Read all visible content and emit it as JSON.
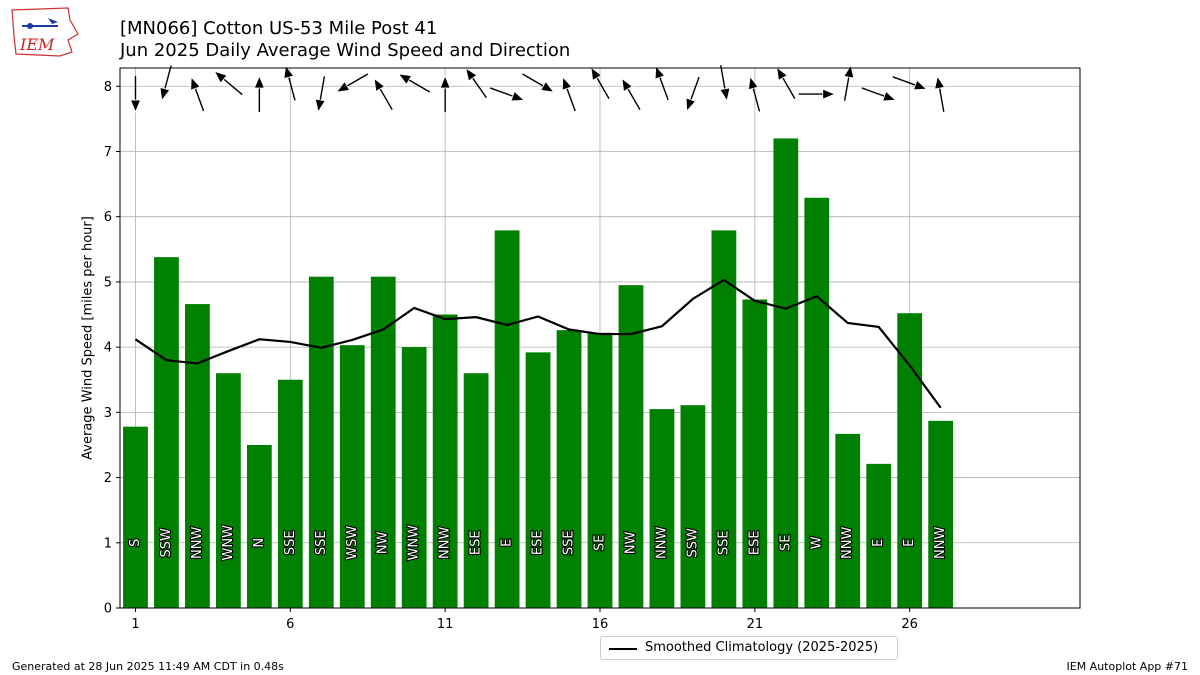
{
  "title_line1": "[MN066] Cotton US-53 Mile Post 41",
  "title_line2": "Jun 2025 Daily Average Wind Speed and Direction",
  "logo_text": "IEM",
  "footer_left": "Generated at 28 Jun 2025 11:49 AM CDT in 0.48s",
  "footer_right": "IEM Autoplot App #71",
  "legend_label": "Smoothed Climatology (2025-2025)",
  "colors": {
    "bar": "#008000",
    "climo": "#000000",
    "grid": "#b0b0b0"
  },
  "chart_data": {
    "type": "bar",
    "ylabel": "Average Wind Speed [miles per hour]",
    "xlabel": "",
    "xlim": [
      0.5,
      31.5
    ],
    "ylim": [
      0,
      8.28
    ],
    "x_ticks": [
      1,
      6,
      11,
      16,
      21,
      26
    ],
    "y_ticks": [
      0,
      1,
      2,
      3,
      4,
      5,
      6,
      7,
      8
    ],
    "grid": true,
    "legend_position": "bottom-center",
    "days": [
      1,
      2,
      3,
      4,
      5,
      6,
      7,
      8,
      9,
      10,
      11,
      12,
      13,
      14,
      15,
      16,
      17,
      18,
      19,
      20,
      21,
      22,
      23,
      24,
      25,
      26,
      27
    ],
    "series": [
      {
        "type": "bar",
        "values": [
          2.78,
          5.38,
          4.66,
          3.6,
          2.5,
          3.5,
          5.08,
          4.03,
          5.08,
          4.0,
          4.5,
          3.6,
          5.79,
          3.92,
          4.26,
          4.22,
          4.95,
          3.05,
          3.11,
          5.79,
          4.73,
          7.2,
          6.29,
          2.67,
          2.21,
          4.52,
          2.87
        ]
      },
      {
        "type": "line",
        "name": "Smoothed Climatology (2025-2025)",
        "values": [
          4.12,
          3.8,
          3.75,
          3.94,
          4.12,
          4.08,
          3.99,
          4.11,
          4.27,
          4.6,
          4.43,
          4.46,
          4.34,
          4.47,
          4.27,
          4.2,
          4.2,
          4.32,
          4.74,
          5.03,
          4.71,
          4.59,
          4.78,
          4.37,
          4.31,
          3.72,
          3.07
        ]
      }
    ],
    "direction_labels": [
      "S",
      "SSW",
      "NNW",
      "WNW",
      "N",
      "SSE",
      "SSE",
      "WSW",
      "NW",
      "WNW",
      "NNW",
      "ESE",
      "E",
      "ESE",
      "SSE",
      "SE",
      "NW",
      "NNW",
      "SSW",
      "SSE",
      "ESE",
      "SE",
      "W",
      "NNW",
      "E",
      "E",
      "NNW"
    ],
    "wind_arrows_deg": [
      0,
      15,
      160,
      130,
      180,
      165,
      10,
      60,
      150,
      120,
      180,
      145,
      290,
      300,
      160,
      150,
      150,
      160,
      20,
      350,
      165,
      150,
      270,
      190,
      290,
      290,
      170
    ]
  }
}
